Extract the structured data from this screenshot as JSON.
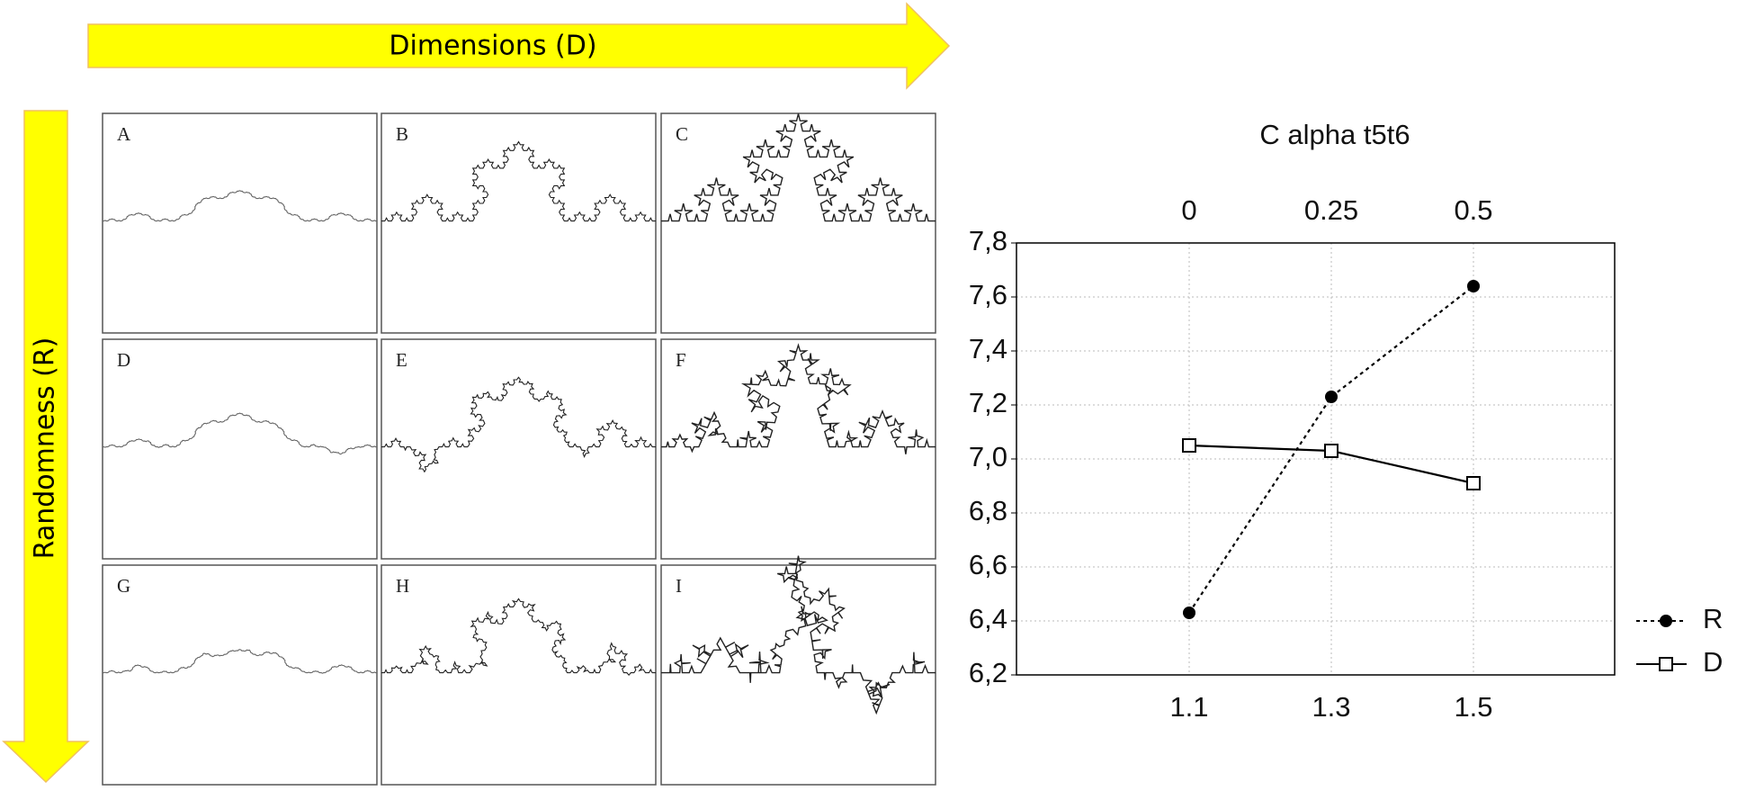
{
  "arrows": {
    "horizontal": "Dimensions (D)",
    "vertical": "Randomness (R)"
  },
  "panels": [
    "A",
    "B",
    "C",
    "D",
    "E",
    "F",
    "G",
    "H",
    "I"
  ],
  "chart_data": {
    "type": "line",
    "title": "C  alpha t5t6",
    "categories": [
      "1.1",
      "1.3",
      "1.5"
    ],
    "top_categories": [
      "0",
      "0.25",
      "0.5"
    ],
    "series": [
      {
        "name": "R",
        "color": "#000000",
        "marker": "filled-circle",
        "dash": true,
        "values": [
          6.43,
          7.23,
          7.64
        ]
      },
      {
        "name": "D",
        "color": "#000000",
        "marker": "open-square",
        "dash": false,
        "values": [
          7.05,
          7.03,
          6.91
        ]
      }
    ],
    "ylim": [
      6.2,
      7.8
    ],
    "yticks": [
      {
        "value": 6.2,
        "label": "6,2"
      },
      {
        "value": 6.4,
        "label": "6,4"
      },
      {
        "value": 6.6,
        "label": "6,6"
      },
      {
        "value": 6.8,
        "label": "6,8"
      },
      {
        "value": 7.0,
        "label": "7,0"
      },
      {
        "value": 7.2,
        "label": "7,2"
      },
      {
        "value": 7.4,
        "label": "7,4"
      },
      {
        "value": 7.6,
        "label": "7,6"
      },
      {
        "value": 7.8,
        "label": "7,8"
      }
    ],
    "grid": true,
    "legend": "right"
  }
}
